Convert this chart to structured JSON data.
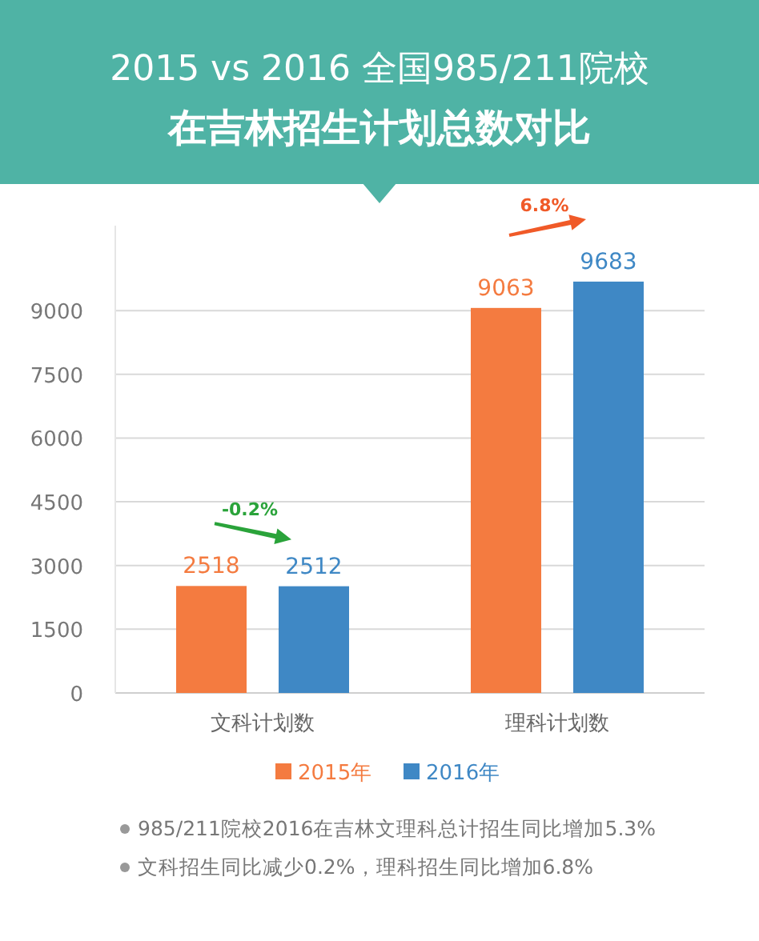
{
  "chart_data": {
    "type": "bar",
    "title": "2015 vs 2016 全国985/211院校",
    "subtitle": "在吉林招生计划总数对比",
    "categories": [
      "文科计划数",
      "理科计划数"
    ],
    "series": [
      {
        "name": "2015年",
        "color": "#f47b40",
        "values": [
          2518,
          9063
        ]
      },
      {
        "name": "2016年",
        "color": "#3f88c5",
        "values": [
          2512,
          9683
        ]
      }
    ],
    "ylim": [
      0,
      11000
    ],
    "yticks": [
      0,
      1500,
      3000,
      4500,
      6000,
      7500,
      9000
    ],
    "grid": "y",
    "legend": "bottom",
    "data_labels": true,
    "annotations": [
      "-0.2%",
      "6.8%",
      "985/211院校2016在吉林文理科总计招生同比增加5.3%",
      "文科招生同比减少0.2%，理科招生同比增加6.8%"
    ]
  }
}
